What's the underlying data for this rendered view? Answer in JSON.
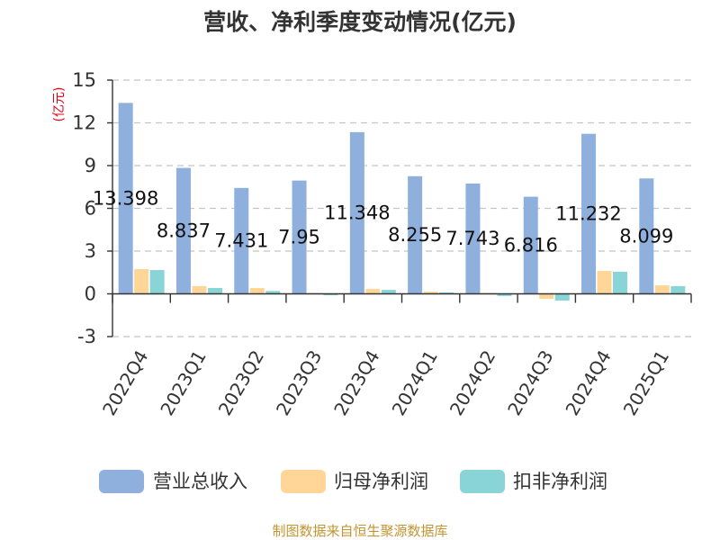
{
  "chart_data": {
    "type": "bar",
    "title": "营收、净利季度变动情况(亿元)",
    "ylabel": "(亿元)",
    "ylim": [
      -3,
      15
    ],
    "yticks": [
      15,
      12,
      9,
      6,
      3,
      0,
      -3
    ],
    "grid": true,
    "legend": "bottom",
    "categories": [
      "2022Q4",
      "2023Q1",
      "2023Q2",
      "2023Q3",
      "2023Q4",
      "2024Q1",
      "2024Q2",
      "2024Q3",
      "2024Q4",
      "2025Q1"
    ],
    "series": [
      {
        "name": "营业总收入",
        "color": "#8FAFDD",
        "data_labels": true,
        "values": [
          13.398,
          8.837,
          7.431,
          7.95,
          11.348,
          8.255,
          7.743,
          6.816,
          11.232,
          8.099
        ]
      },
      {
        "name": "归母净利润",
        "color": "#FFD697",
        "data_labels": false,
        "values": [
          1.74,
          0.54,
          0.41,
          0.06,
          0.35,
          0.15,
          0.07,
          -0.35,
          1.61,
          0.6
        ]
      },
      {
        "name": "扣非净利润",
        "color": "#88D4D7",
        "data_labels": false,
        "values": [
          1.67,
          0.41,
          0.2,
          -0.1,
          0.28,
          0.1,
          -0.15,
          -0.47,
          1.55,
          0.54
        ]
      }
    ]
  },
  "source": "制图数据来自恒生聚源数据库"
}
